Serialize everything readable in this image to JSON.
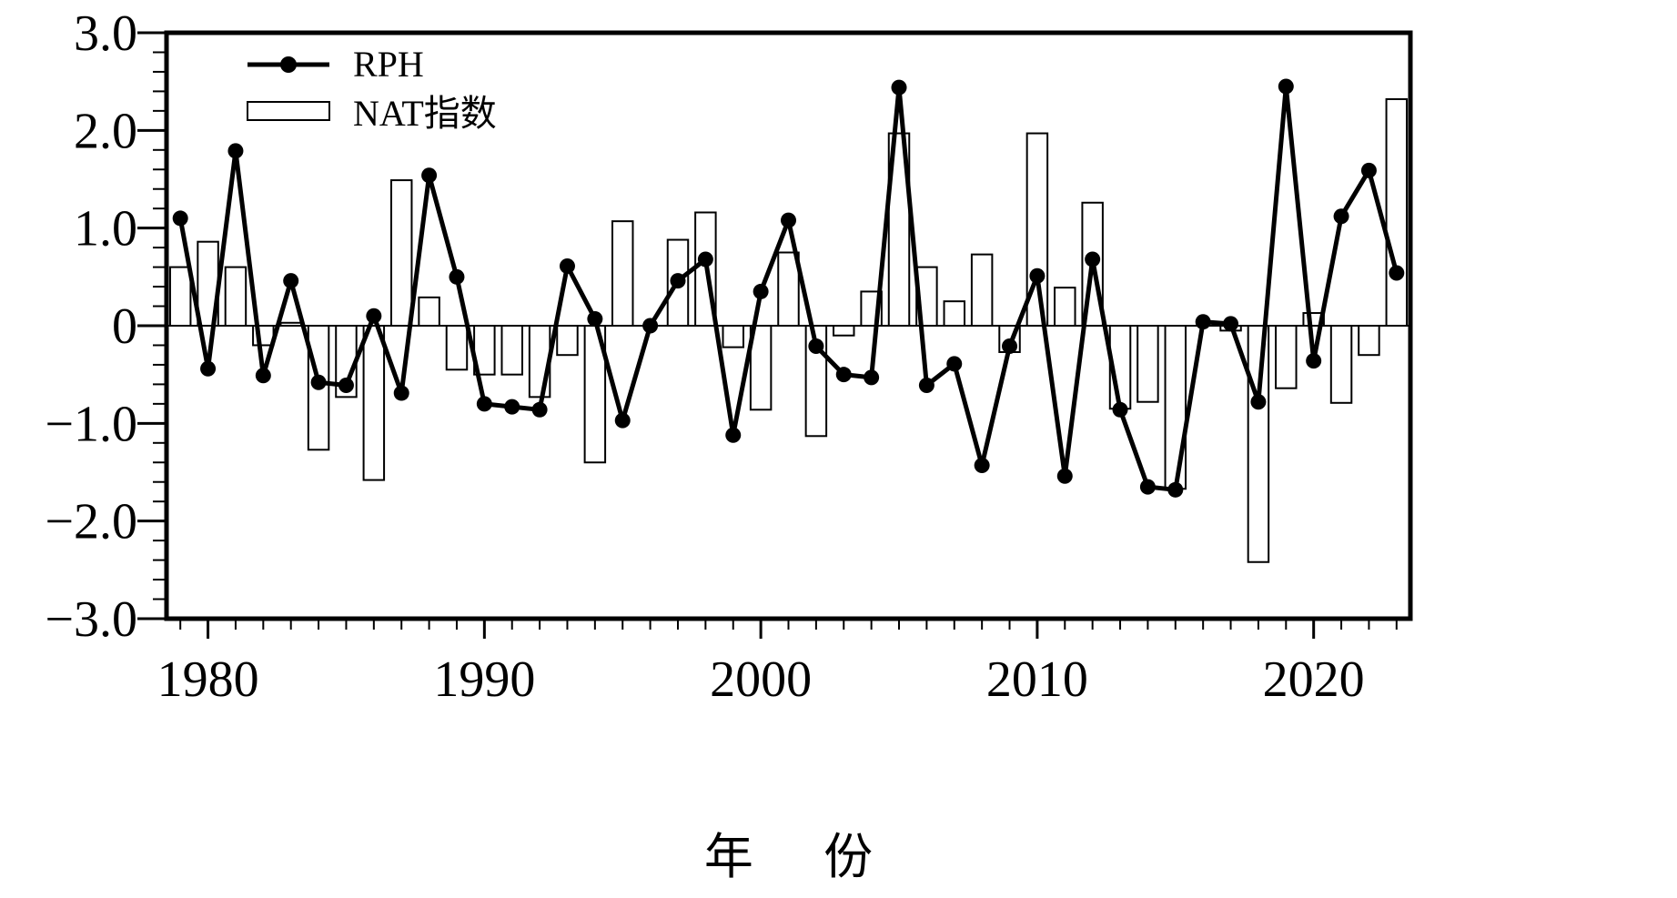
{
  "chart_data": {
    "type": "bar+line",
    "xlabel": "年 份",
    "ylabel": "",
    "xlim": [
      1978.5,
      2023.5
    ],
    "ylim": [
      -3.0,
      3.0
    ],
    "x_ticks": [
      1980,
      1990,
      2000,
      2010,
      2020
    ],
    "y_ticks": [
      {
        "value": 3.0,
        "label": "3.0"
      },
      {
        "value": 2.0,
        "label": "2.0"
      },
      {
        "value": 1.0,
        "label": "1.0"
      },
      {
        "value": 0,
        "label": "0"
      },
      {
        "value": -1.0,
        "label": "−1.0"
      },
      {
        "value": -2.0,
        "label": "−2.0"
      },
      {
        "value": -3.0,
        "label": "−3.0"
      }
    ],
    "legend_position": "top-left",
    "years": [
      1979,
      1980,
      1981,
      1982,
      1983,
      1984,
      1985,
      1986,
      1987,
      1988,
      1989,
      1990,
      1991,
      1992,
      1993,
      1994,
      1995,
      1996,
      1997,
      1998,
      1999,
      2000,
      2001,
      2002,
      2003,
      2004,
      2005,
      2006,
      2007,
      2008,
      2009,
      2010,
      2011,
      2012,
      2013,
      2014,
      2015,
      2016,
      2017,
      2018,
      2019,
      2020,
      2021,
      2022,
      2023
    ],
    "series": [
      {
        "name": "RPH",
        "kind": "line",
        "color": "#000000",
        "values": [
          1.1,
          -0.44,
          1.79,
          -0.51,
          0.46,
          -0.58,
          -0.61,
          0.1,
          -0.69,
          1.54,
          0.5,
          -0.8,
          -0.83,
          -0.86,
          0.61,
          0.07,
          -0.97,
          0.0,
          0.46,
          0.68,
          -1.12,
          0.35,
          1.08,
          -0.21,
          -0.5,
          -0.53,
          2.44,
          -0.61,
          -0.39,
          -1.43,
          -0.21,
          0.51,
          -1.54,
          0.68,
          -0.86,
          -1.65,
          -1.68,
          0.04,
          0.02,
          -0.78,
          2.45,
          -0.36,
          1.12,
          1.59,
          0.54
        ]
      },
      {
        "name": "NAT指数",
        "kind": "bar",
        "color": "#ffffff",
        "values": [
          0.6,
          0.86,
          0.6,
          -0.2,
          0.03,
          -1.27,
          -0.73,
          -1.58,
          1.49,
          0.29,
          -0.45,
          -0.5,
          -0.5,
          -0.73,
          -0.3,
          -1.4,
          1.07,
          0.0,
          0.88,
          1.16,
          -0.22,
          -0.86,
          0.75,
          -1.13,
          -0.1,
          0.35,
          1.97,
          0.6,
          0.25,
          0.73,
          -0.27,
          1.97,
          0.39,
          1.26,
          -0.85,
          -0.78,
          -1.67,
          0.0,
          -0.05,
          -2.42,
          -0.64,
          0.13,
          -0.79,
          -0.3,
          2.32
        ]
      }
    ]
  }
}
